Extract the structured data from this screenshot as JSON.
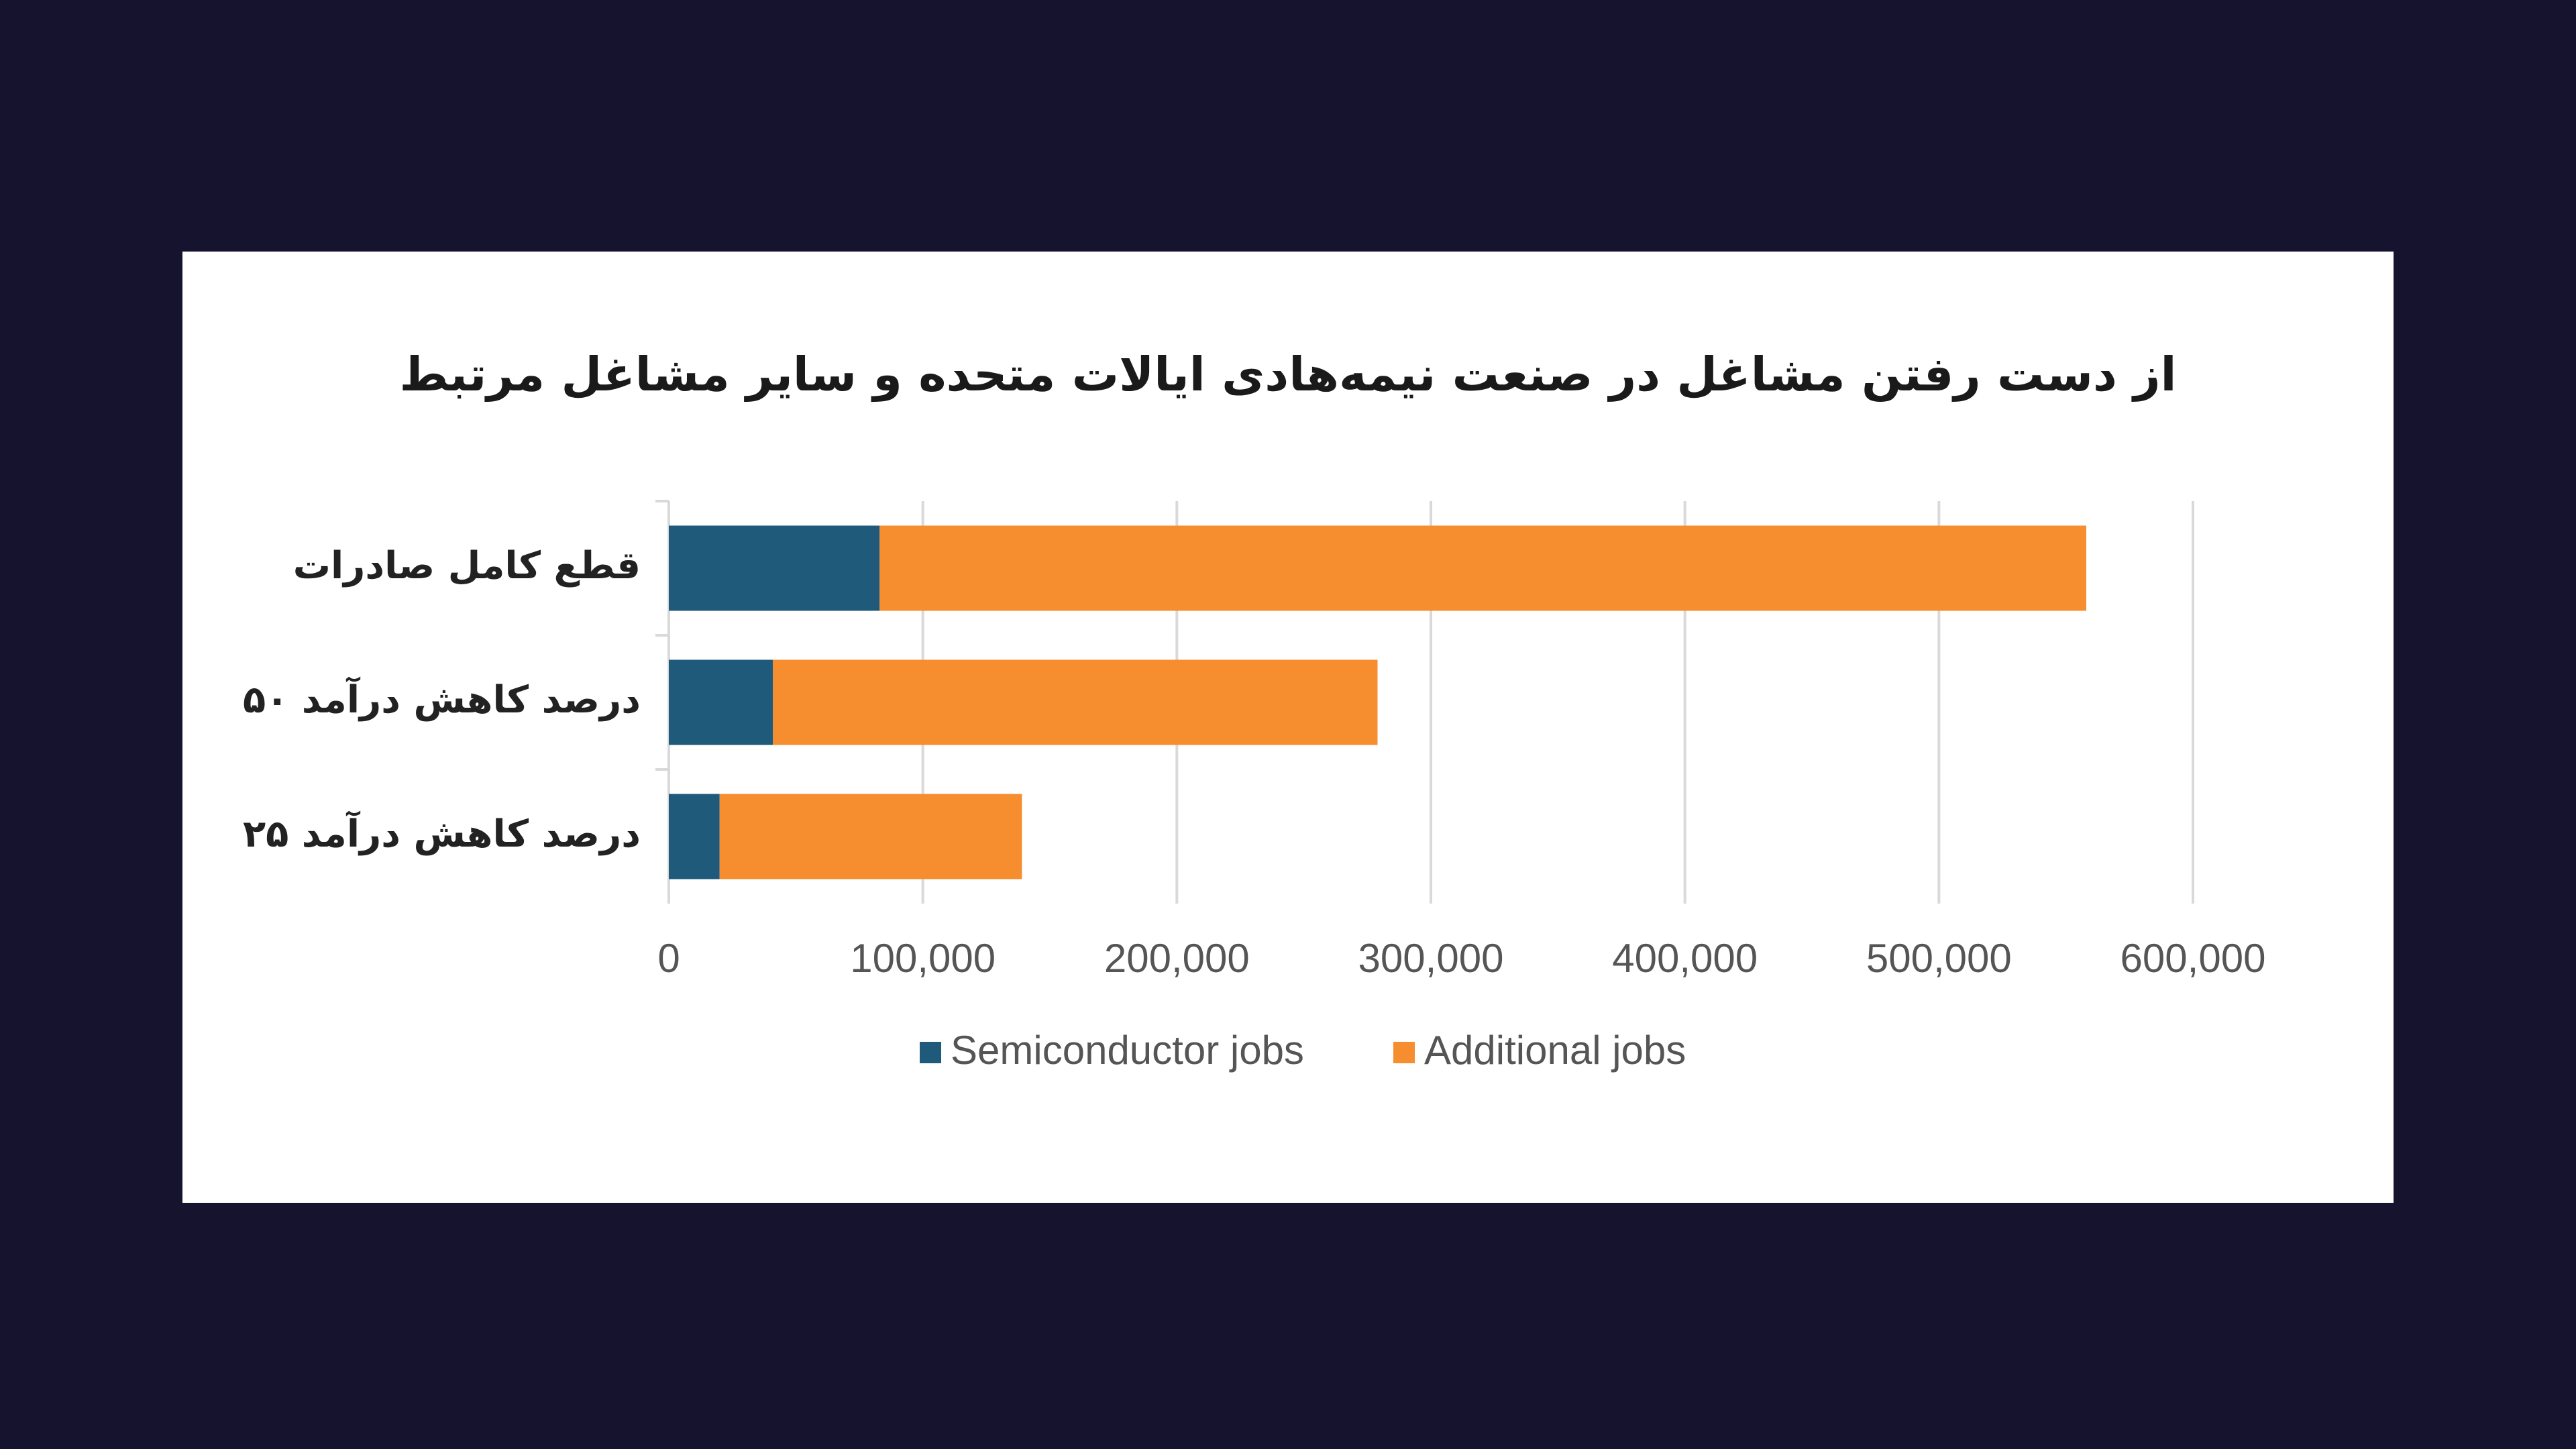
{
  "chart_data": {
    "type": "stacked-bar-horizontal",
    "title": "از دست رفتن مشاغل در صنعت نیمه‌هادی ایالات متحده و سایر مشاغل مرتبط",
    "categories": [
      "قطع کامل صادرات",
      "۵۰ درصد کاهش درآمد",
      "۲۵ درصد کاهش درآمد"
    ],
    "series": [
      {
        "name": "Semiconductor jobs",
        "color": "#1f5a7a",
        "values": [
          83000,
          41000,
          20000
        ]
      },
      {
        "name": "Additional jobs",
        "color": "#f68d2e",
        "values": [
          475000,
          238000,
          119000
        ]
      }
    ],
    "xlim": [
      0,
      600000
    ],
    "xticks": [
      0,
      {
        "value": 100000,
        "label": "100,000"
      },
      {
        "value": 200000,
        "label": "200,000"
      },
      {
        "value": 300000,
        "label": "300,000"
      },
      {
        "value": 400000,
        "label": "400,000"
      },
      {
        "value": 500000,
        "label": "500,000"
      },
      {
        "value": 600000,
        "label": "600,000"
      }
    ],
    "grid": true
  }
}
